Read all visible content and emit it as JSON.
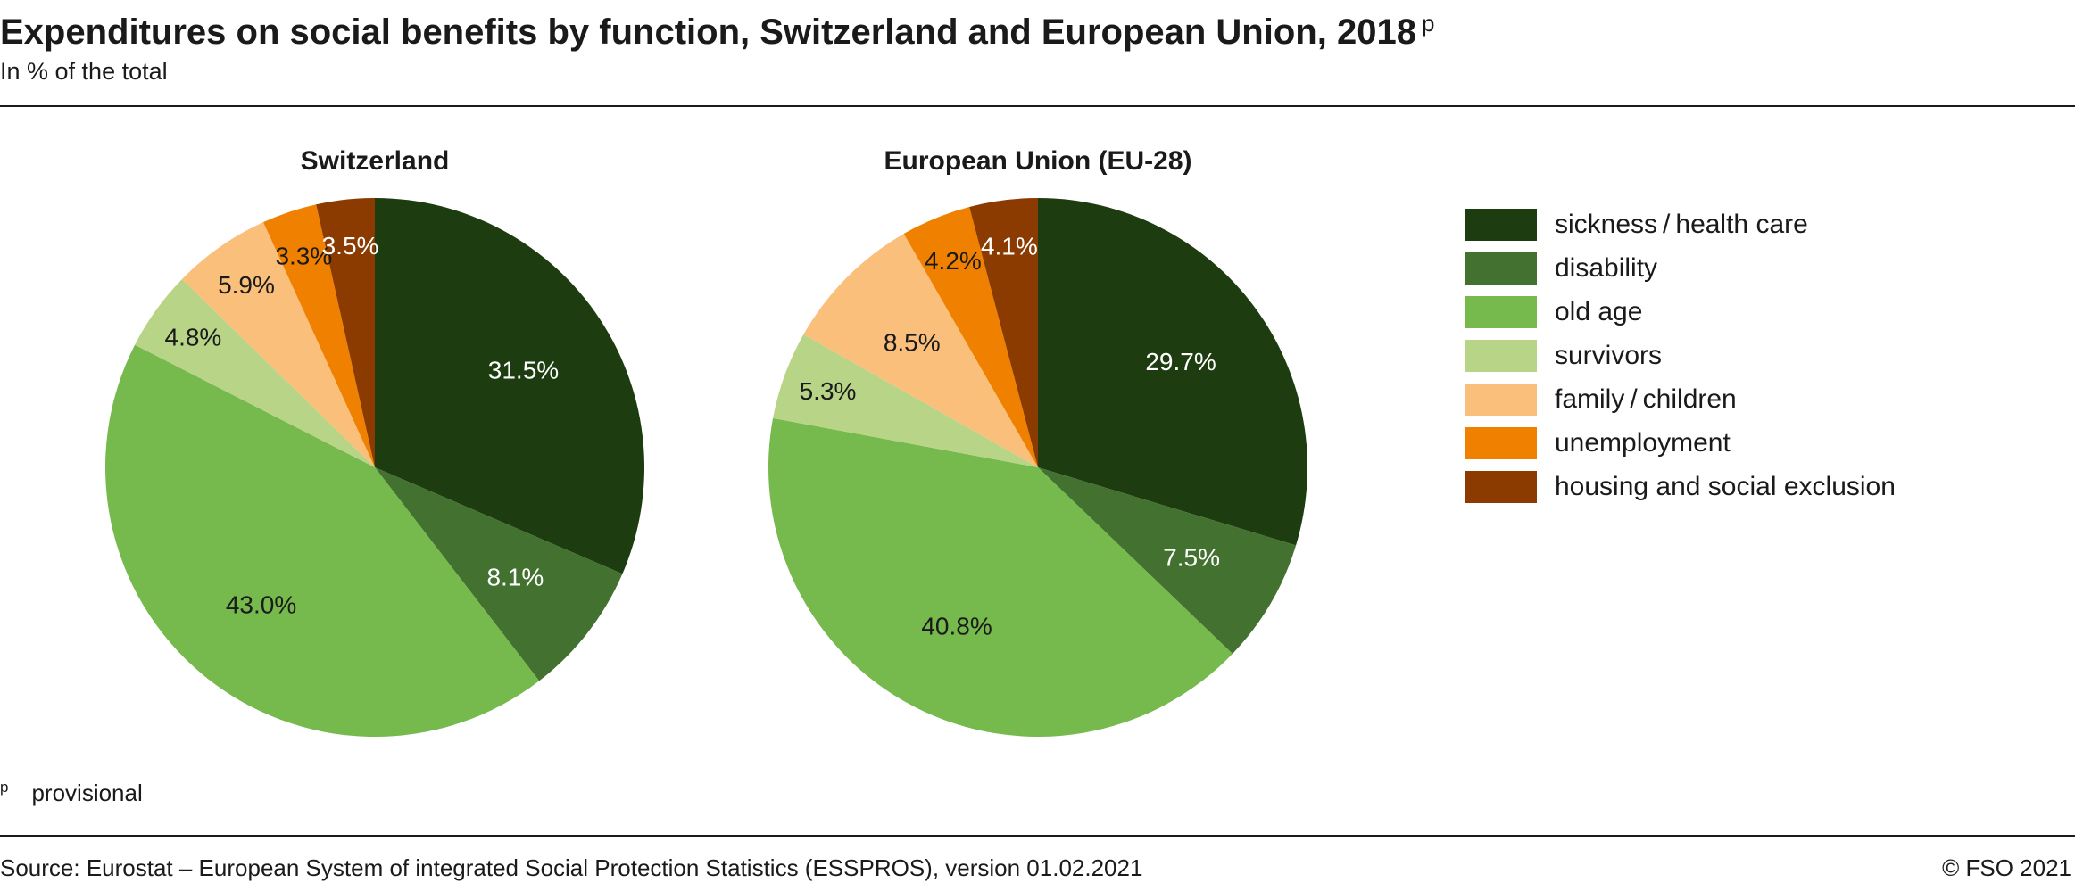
{
  "header": {
    "title": "Expenditures on social benefits by function, Switzerland and European Union, 2018",
    "title_mark": "p",
    "subtitle": "In % of the total"
  },
  "chart_data": [
    {
      "type": "pie",
      "title": "Switzerland",
      "categories": [
        "sickness/health care",
        "disability",
        "old age",
        "survivors",
        "family/children",
        "unemployment",
        "housing and social exclusion"
      ],
      "values": [
        31.5,
        8.1,
        43.0,
        4.8,
        5.9,
        3.3,
        3.5
      ],
      "value_labels": [
        "31.5%",
        "8.1%",
        "43.0%",
        "4.8%",
        "5.9%",
        "3.3%",
        "3.5%"
      ],
      "label_colors": [
        "#ffffff",
        "#ffffff",
        "#1a1a1a",
        "#1a1a1a",
        "#1a1a1a",
        "#1a1a1a",
        "#ffffff"
      ],
      "colors": [
        "#1d3d11",
        "#437130",
        "#76b94c",
        "#b8d587",
        "#f9bf7b",
        "#f08100",
        "#8b3b00"
      ]
    },
    {
      "type": "pie",
      "title": "European Union (EU-28)",
      "categories": [
        "sickness/health care",
        "disability",
        "old age",
        "survivors",
        "family/children",
        "unemployment",
        "housing and social exclusion"
      ],
      "values": [
        29.7,
        7.5,
        40.8,
        5.3,
        8.5,
        4.2,
        4.1
      ],
      "value_labels": [
        "29.7%",
        "7.5%",
        "40.8%",
        "5.3%",
        "8.5%",
        "4.2%",
        "4.1%"
      ],
      "label_colors": [
        "#ffffff",
        "#ffffff",
        "#1a1a1a",
        "#1a1a1a",
        "#1a1a1a",
        "#1a1a1a",
        "#ffffff"
      ],
      "colors": [
        "#1d3d11",
        "#437130",
        "#76b94c",
        "#b8d587",
        "#f9bf7b",
        "#f08100",
        "#8b3b00"
      ]
    }
  ],
  "legend": {
    "placement": "right",
    "items": [
      {
        "label": "sickness / health care",
        "color": "#1d3d11"
      },
      {
        "label": "disability",
        "color": "#437130"
      },
      {
        "label": "old age",
        "color": "#76b94c"
      },
      {
        "label": "survivors",
        "color": "#b8d587"
      },
      {
        "label": "family / children",
        "color": "#f9bf7b"
      },
      {
        "label": "unemployment",
        "color": "#f08100"
      },
      {
        "label": "housing and social exclusion",
        "color": "#8b3b00"
      }
    ]
  },
  "footnote": {
    "mark": "p",
    "text": "provisional"
  },
  "footer": {
    "source": "Source: Eurostat – European System of integrated Social Protection Statistics (ESSPROS), version 01.02.2021",
    "copyright": "© FSO 2021"
  }
}
